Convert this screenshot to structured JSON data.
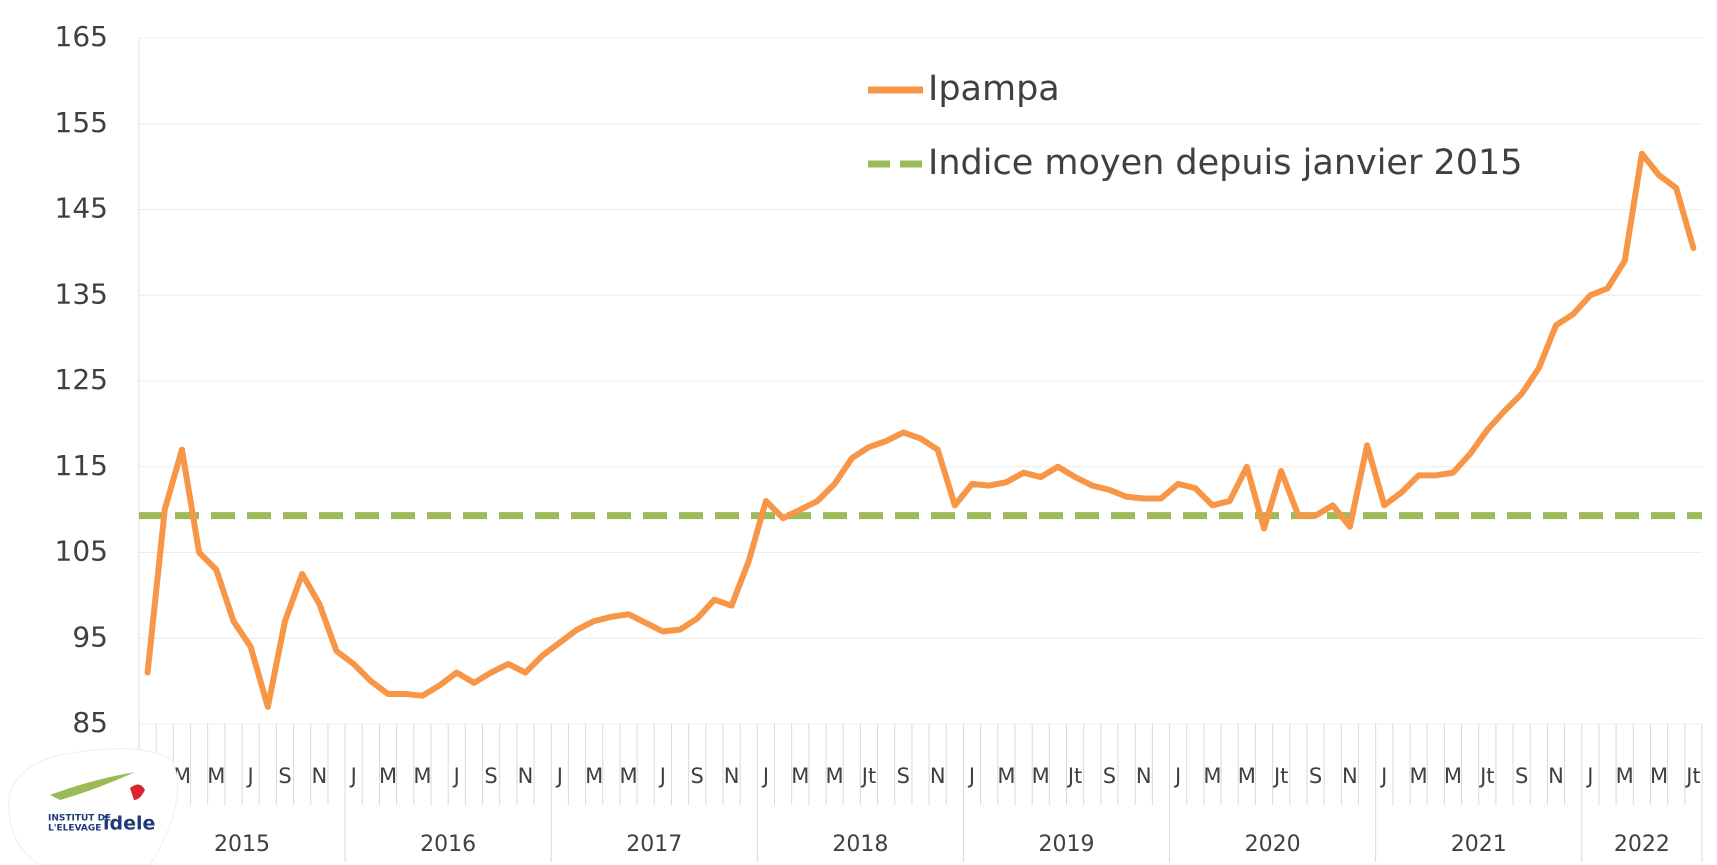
{
  "chart_data": {
    "type": "line",
    "categories": [
      null,
      null,
      "M",
      null,
      "M",
      null,
      "J",
      null,
      "S",
      null,
      "N",
      null,
      "J",
      null,
      "M",
      null,
      "M",
      null,
      "J",
      null,
      "S",
      null,
      "N",
      null,
      "J",
      null,
      "M",
      null,
      "M",
      null,
      "J",
      null,
      "S",
      null,
      "N",
      null,
      "J",
      null,
      "M",
      null,
      "M",
      null,
      "Jt",
      null,
      "S",
      null,
      "N",
      null,
      "J",
      null,
      "M",
      null,
      "M",
      null,
      "Jt",
      null,
      "S",
      null,
      "N",
      null,
      "J",
      null,
      "M",
      null,
      "M",
      null,
      "Jt",
      null,
      "S",
      null,
      "N",
      null,
      "J",
      null,
      "M",
      null,
      "M",
      null,
      "Jt",
      null,
      "S",
      null,
      "N",
      null,
      "J",
      null,
      "M",
      null,
      "M",
      null,
      "Jt"
    ],
    "years": [
      "2015",
      "2016",
      "2017",
      "2018",
      "2019",
      "2020",
      "2021",
      "2022"
    ],
    "series": [
      {
        "name": "Ipampa",
        "color": "#f79646",
        "values": [
          91,
          110,
          117,
          105,
          103,
          97,
          94,
          87,
          97,
          102.5,
          99,
          93.5,
          92,
          90,
          88.5,
          88.5,
          88.3,
          89.5,
          91,
          89.8,
          91,
          92,
          91,
          93,
          94.5,
          96,
          97,
          97.5,
          97.8,
          96.8,
          95.8,
          96,
          97.3,
          99.5,
          98.8,
          104,
          111,
          109,
          110,
          111,
          113,
          116,
          117.3,
          118,
          119,
          118.3,
          117,
          110.5,
          113,
          112.8,
          113.2,
          114.3,
          113.8,
          115,
          113.8,
          112.8,
          112.3,
          111.5,
          111.3,
          111.3,
          113,
          112.5,
          110.5,
          111,
          115,
          107.8,
          114.5,
          109.3,
          109.3,
          110.5,
          108,
          117.5,
          110.5,
          112,
          114,
          114,
          114.3,
          116.5,
          119.3,
          121.5,
          123.5,
          126.5,
          131.5,
          132.8,
          135,
          135.8,
          139,
          151.5,
          149,
          147.5,
          140.5
        ]
      }
    ],
    "reference_line": {
      "name": "Indice moyen depuis janvier 2015",
      "value": 109.3,
      "color": "#9bbb59"
    },
    "ylim": [
      85,
      165
    ],
    "yticks": [
      85,
      95,
      105,
      115,
      125,
      135,
      145,
      155,
      165
    ],
    "grid": true,
    "legend": "top-right",
    "logo": {
      "line1": "INSTITUT DE",
      "line2": "L'ELEVAGE",
      "brand": "idele"
    }
  }
}
